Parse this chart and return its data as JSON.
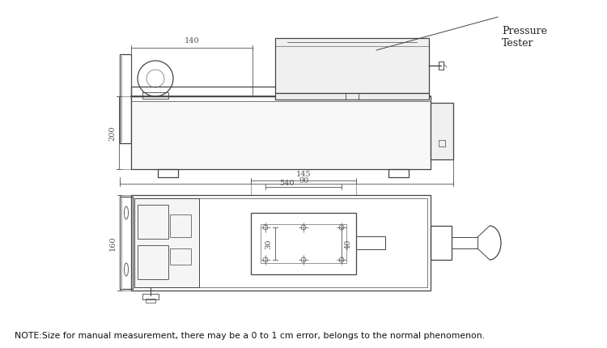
{
  "bg_color": "#ffffff",
  "line_color": "#444444",
  "dim_color": "#555555",
  "note_text": "NOTE:Size for manual measurement, there may be a 0 to 1 cm error, belongs to the normal phenomenon.",
  "pressure_tester_label": "Pressure\nTester",
  "dim_140": "140",
  "dim_200": "200",
  "dim_540": "540",
  "dim_145": "145",
  "dim_90": "90",
  "dim_30": "30",
  "dim_40": "40",
  "dim_160": "160"
}
